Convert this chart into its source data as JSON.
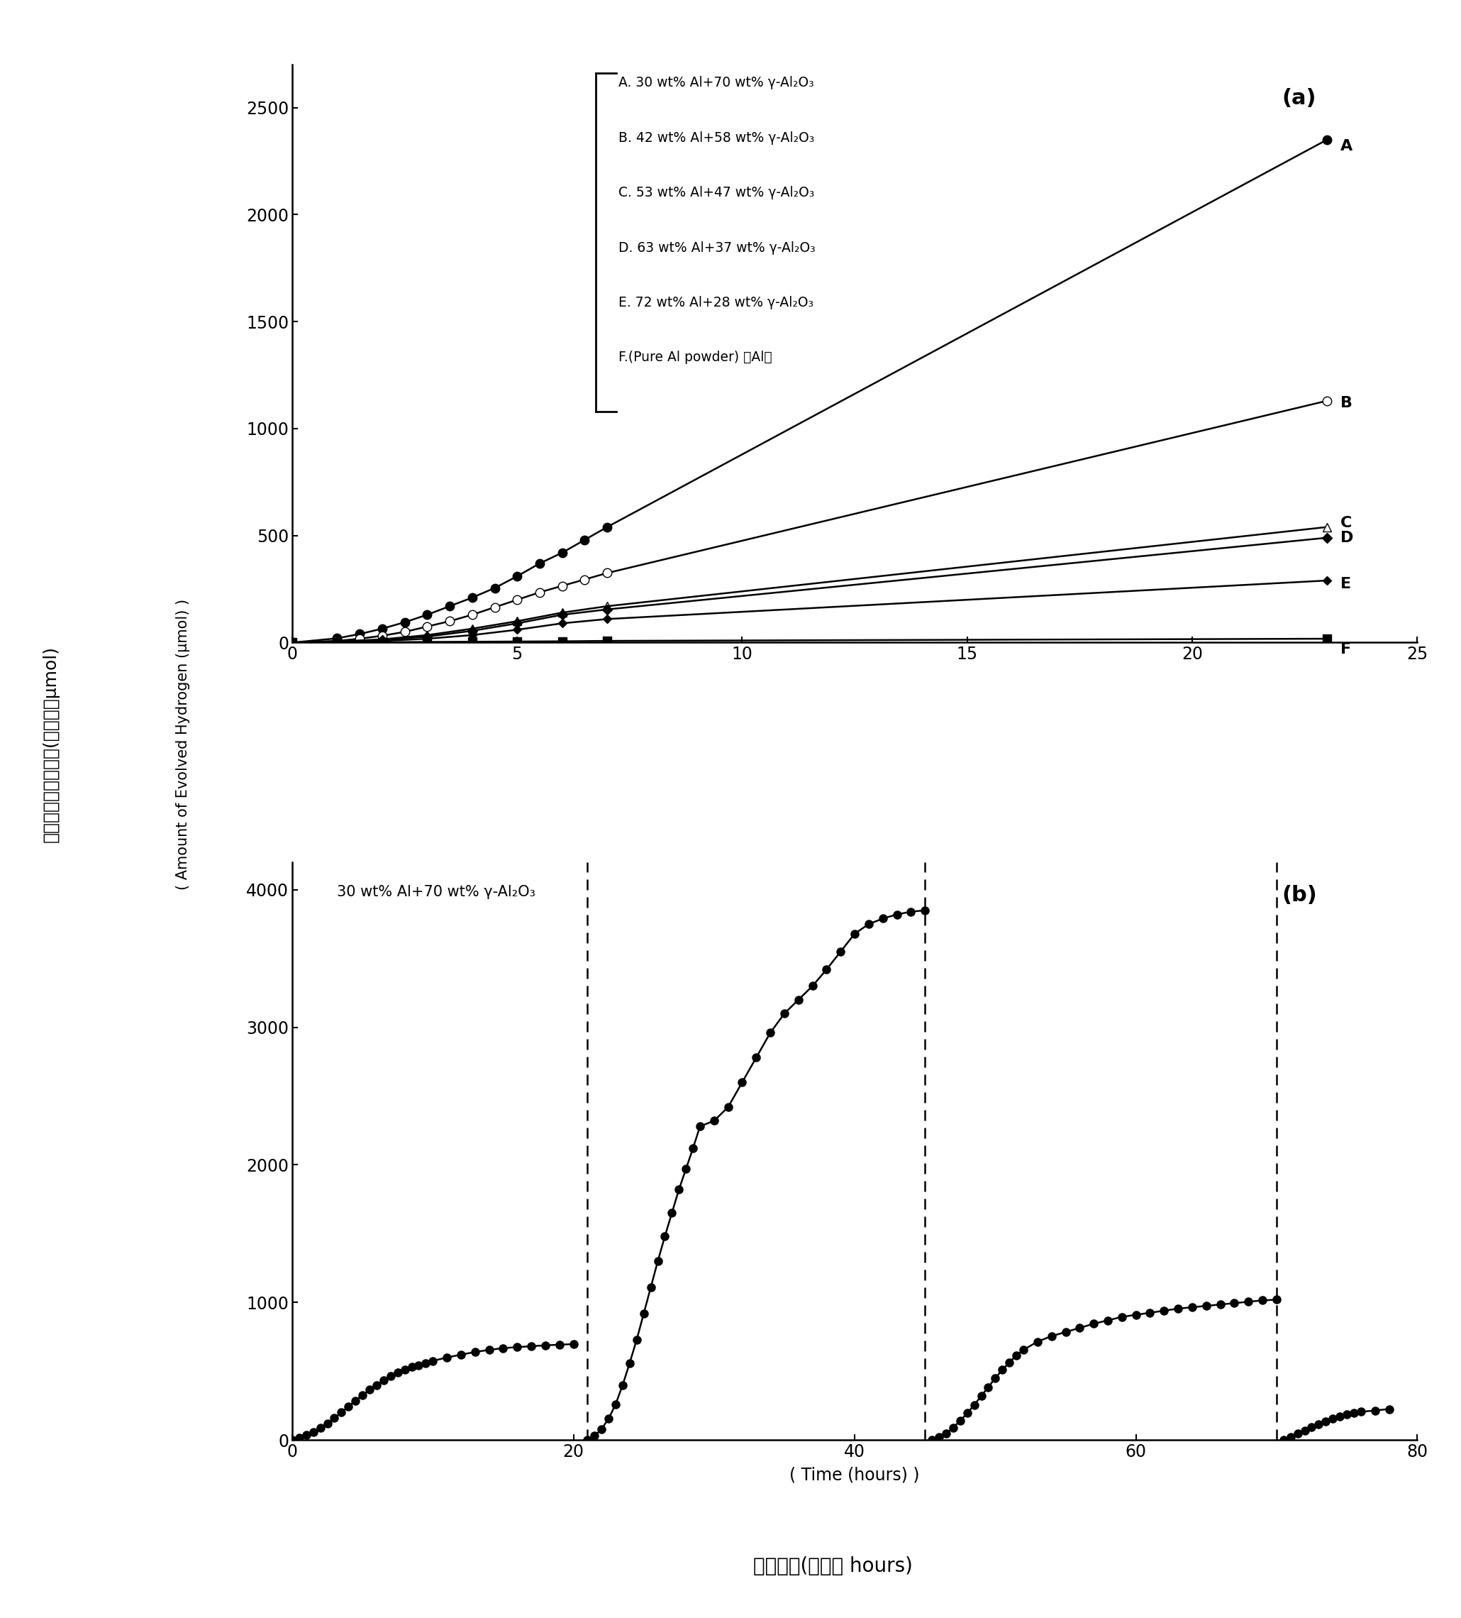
{
  "panel_a": {
    "annotation_lines": [
      "A. 30 wt% Al+70 wt% γ-Al₂O₃",
      "B. 42 wt% Al+58 wt% γ-Al₂O₃",
      "C. 53 wt% Al+47 wt% γ-Al₂O₃",
      "D. 63 wt% Al+37 wt% γ-Al₂O₃",
      "E. 72 wt% Al+28 wt% γ-Al₂O₃",
      "F.(Pure Al powder) 绎Al粉"
    ],
    "series_A_x": [
      0,
      1,
      1.5,
      2,
      2.5,
      3,
      3.5,
      4,
      4.5,
      5,
      5.5,
      6,
      6.5,
      7,
      23
    ],
    "series_A_y": [
      0,
      20,
      40,
      65,
      95,
      130,
      170,
      210,
      255,
      310,
      370,
      420,
      480,
      540,
      2350
    ],
    "series_B_x": [
      0,
      1,
      1.5,
      2,
      2.5,
      3,
      3.5,
      4,
      4.5,
      5,
      5.5,
      6,
      6.5,
      7,
      23
    ],
    "series_B_y": [
      0,
      8,
      18,
      32,
      50,
      75,
      100,
      130,
      165,
      200,
      235,
      265,
      295,
      325,
      1130
    ],
    "series_C_x": [
      0,
      1,
      2,
      3,
      4,
      5,
      6,
      7,
      23
    ],
    "series_C_y": [
      0,
      5,
      15,
      35,
      65,
      100,
      140,
      170,
      540
    ],
    "series_D_x": [
      0,
      1,
      2,
      3,
      4,
      5,
      6,
      7,
      23
    ],
    "series_D_y": [
      0,
      4,
      12,
      28,
      55,
      90,
      130,
      155,
      490
    ],
    "series_E_x": [
      0,
      1,
      2,
      3,
      4,
      5,
      6,
      7,
      23
    ],
    "series_E_y": [
      0,
      3,
      8,
      18,
      35,
      60,
      90,
      110,
      290
    ],
    "series_F_x": [
      0,
      1,
      2,
      3,
      4,
      5,
      6,
      7,
      23
    ],
    "series_F_y": [
      0,
      1,
      2,
      3,
      4,
      5,
      6,
      8,
      18
    ],
    "xlim": [
      0,
      25
    ],
    "ylim": [
      0,
      2700
    ],
    "yticks": [
      0,
      500,
      1000,
      1500,
      2000,
      2500
    ],
    "xticks": [
      0,
      5,
      10,
      15,
      20,
      25
    ],
    "label_A": [
      23.3,
      2320
    ],
    "label_B": [
      23.3,
      1120
    ],
    "label_C": [
      23.3,
      560
    ],
    "label_D": [
      23.3,
      490
    ],
    "label_E": [
      23.3,
      275
    ],
    "label_F": [
      23.3,
      -30
    ]
  },
  "panel_b": {
    "annotation_text": "30 wt% Al+70 wt% γ-Al₂O₃",
    "seg1_x": [
      0,
      0.5,
      1,
      1.5,
      2,
      2.5,
      3,
      3.5,
      4,
      4.5,
      5,
      5.5,
      6,
      6.5,
      7,
      7.5,
      8,
      8.5,
      9,
      9.5,
      10,
      11,
      12,
      13,
      14,
      15,
      16,
      17,
      18,
      19,
      20
    ],
    "seg1_y": [
      0,
      15,
      35,
      60,
      90,
      120,
      160,
      200,
      245,
      285,
      325,
      365,
      400,
      435,
      465,
      490,
      510,
      530,
      545,
      560,
      575,
      600,
      620,
      640,
      655,
      668,
      675,
      682,
      688,
      693,
      697
    ],
    "seg2_x": [
      21,
      21.5,
      22,
      22.5,
      23,
      23.5,
      24,
      24.5,
      25,
      25.5,
      26,
      26.5,
      27,
      27.5,
      28,
      28.5,
      29,
      30,
      31,
      32,
      33,
      34,
      35,
      36,
      37,
      38,
      39,
      40,
      41,
      42,
      43,
      44,
      45
    ],
    "seg2_y": [
      0,
      30,
      80,
      155,
      260,
      400,
      560,
      730,
      920,
      1110,
      1300,
      1480,
      1650,
      1820,
      1970,
      2120,
      2280,
      2320,
      2420,
      2600,
      2780,
      2960,
      3100,
      3200,
      3300,
      3420,
      3550,
      3680,
      3750,
      3790,
      3820,
      3840,
      3850
    ],
    "seg3_x": [
      45.5,
      46,
      46.5,
      47,
      47.5,
      48,
      48.5,
      49,
      49.5,
      50,
      50.5,
      51,
      51.5,
      52,
      53,
      54,
      55,
      56,
      57,
      58,
      59,
      60,
      61,
      62,
      63,
      64,
      65,
      66,
      67,
      68,
      69,
      70
    ],
    "seg3_y": [
      0,
      20,
      50,
      90,
      140,
      195,
      255,
      320,
      385,
      450,
      510,
      565,
      615,
      655,
      715,
      755,
      785,
      815,
      845,
      870,
      895,
      910,
      925,
      940,
      955,
      965,
      975,
      985,
      995,
      1005,
      1015,
      1020
    ],
    "seg4_x": [
      70.5,
      71,
      71.5,
      72,
      72.5,
      73,
      73.5,
      74,
      74.5,
      75,
      75.5,
      76,
      77,
      78
    ],
    "seg4_y": [
      0,
      20,
      45,
      70,
      95,
      115,
      135,
      155,
      170,
      185,
      195,
      205,
      215,
      225
    ],
    "vlines": [
      21,
      45,
      70
    ],
    "xlim": [
      0,
      80
    ],
    "ylim": [
      0,
      4200
    ],
    "yticks": [
      0,
      1000,
      2000,
      3000,
      4000
    ],
    "xticks": [
      0,
      20,
      40,
      60,
      80
    ]
  },
  "ylabel_chinese": "产氢量随时间的变化(微摩尔，μmol)",
  "ylabel_english": "( Amount of Evolved Hydrogen (μmol) )",
  "xlabel_english": "( Time (hours) )",
  "xlabel_chinese": "反应时间(小时， hours)"
}
